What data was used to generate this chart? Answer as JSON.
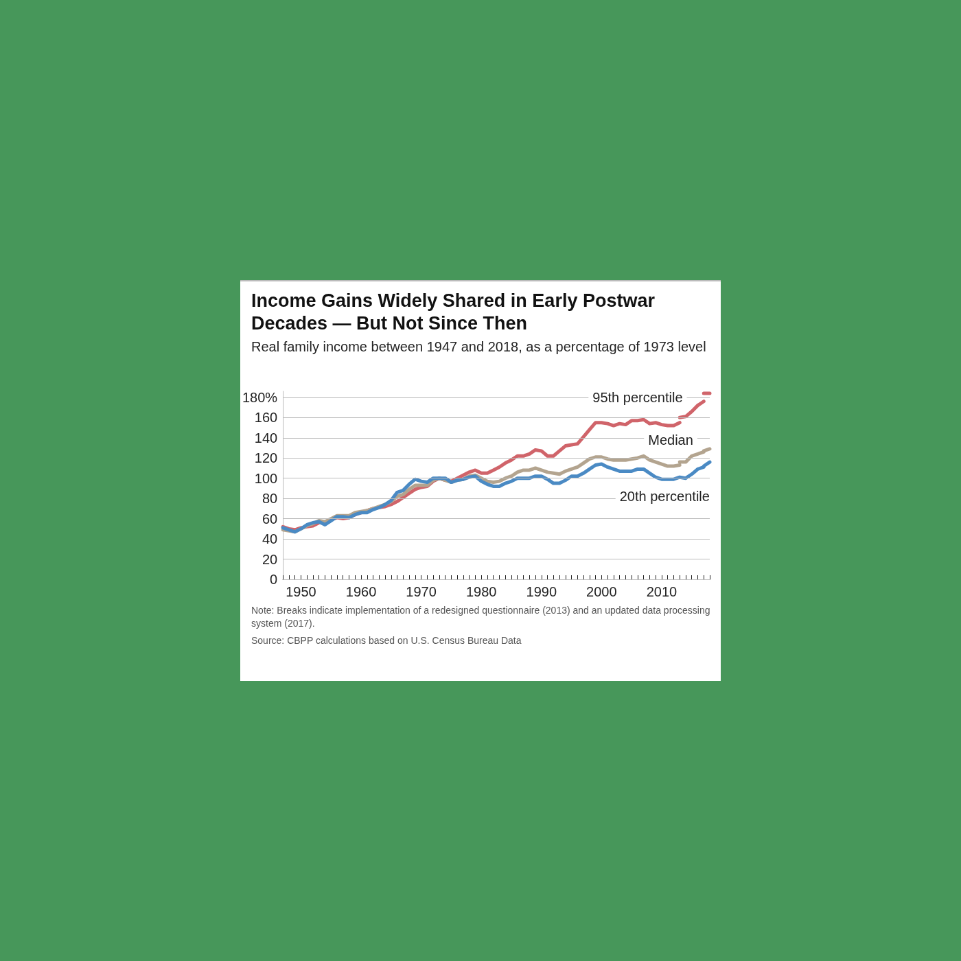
{
  "chart_data": {
    "type": "line",
    "title": "Income Gains Widely Shared in Early Postwar Decades — But Not Since Then",
    "subtitle": "Real family income between 1947 and 2018, as a percentage of 1973 level",
    "annotations": [
      "Note: Breaks indicate implementation of a redesigned questionnaire (2013) and an updated data processing system (2017).",
      "Source: CBPP calculations based on U.S. Census Bureau Data"
    ],
    "x": [
      1947,
      1948,
      1949,
      1950,
      1951,
      1952,
      1953,
      1954,
      1955,
      1956,
      1957,
      1958,
      1959,
      1960,
      1961,
      1962,
      1963,
      1964,
      1965,
      1966,
      1967,
      1968,
      1969,
      1970,
      1971,
      1972,
      1973,
      1974,
      1975,
      1976,
      1977,
      1978,
      1979,
      1980,
      1981,
      1982,
      1983,
      1984,
      1985,
      1986,
      1987,
      1988,
      1989,
      1990,
      1991,
      1992,
      1993,
      1994,
      1995,
      1996,
      1997,
      1998,
      1999,
      2000,
      2001,
      2002,
      2003,
      2004,
      2005,
      2006,
      2007,
      2008,
      2009,
      2010,
      2011,
      2012,
      2013,
      null,
      2013,
      2014,
      2015,
      2016,
      2017,
      null,
      2017,
      2018
    ],
    "series": [
      {
        "name": "95th percentile",
        "color": "#d0646a",
        "values": [
          52,
          50,
          49,
          51,
          52,
          53,
          56,
          56,
          59,
          61,
          60,
          61,
          64,
          66,
          68,
          70,
          71,
          72,
          74,
          77,
          81,
          85,
          89,
          91,
          92,
          97,
          100,
          98,
          97,
          100,
          103,
          106,
          108,
          105,
          105,
          108,
          111,
          115,
          118,
          122,
          122,
          124,
          128,
          127,
          122,
          122,
          127,
          132,
          133,
          134,
          141,
          148,
          155,
          155,
          154,
          152,
          154,
          153,
          157,
          157,
          158,
          154,
          155,
          153,
          152,
          152,
          155,
          null,
          160,
          161,
          166,
          172,
          176,
          null,
          184,
          184
        ]
      },
      {
        "name": "Median",
        "color": "#b3a48f",
        "values": [
          49,
          48,
          47,
          50,
          53,
          55,
          58,
          57,
          60,
          63,
          63,
          63,
          66,
          67,
          68,
          70,
          72,
          74,
          77,
          82,
          84,
          89,
          93,
          93,
          93,
          98,
          100,
          98,
          96,
          98,
          99,
          102,
          103,
          100,
          97,
          96,
          97,
          100,
          102,
          106,
          108,
          108,
          110,
          108,
          106,
          105,
          104,
          107,
          109,
          111,
          115,
          119,
          121,
          121,
          119,
          118,
          118,
          118,
          119,
          120,
          122,
          118,
          116,
          114,
          112,
          112,
          113,
          null,
          116,
          116,
          122,
          124,
          126,
          null,
          127,
          129
        ]
      },
      {
        "name": "20th percentile",
        "color": "#4a8ac4",
        "values": [
          51,
          49,
          47,
          50,
          54,
          56,
          57,
          54,
          58,
          62,
          62,
          61,
          64,
          66,
          66,
          69,
          71,
          74,
          78,
          86,
          88,
          94,
          99,
          97,
          96,
          100,
          100,
          100,
          96,
          98,
          99,
          101,
          102,
          97,
          94,
          92,
          92,
          95,
          97,
          100,
          100,
          100,
          102,
          102,
          99,
          95,
          95,
          98,
          102,
          102,
          105,
          109,
          113,
          114,
          111,
          109,
          107,
          107,
          107,
          109,
          109,
          105,
          101,
          99,
          99,
          99,
          101,
          null,
          101,
          100,
          104,
          109,
          111,
          null,
          112,
          116
        ]
      }
    ],
    "xlim": [
      1947,
      2018
    ],
    "xticks": [
      1950,
      1960,
      1970,
      1980,
      1990,
      2000,
      2010
    ],
    "ylim": [
      0,
      186
    ],
    "yticks": [
      0,
      20,
      40,
      60,
      80,
      100,
      120,
      140,
      160,
      {
        "value": 180,
        "label": "180%"
      }
    ],
    "grid": "y",
    "legend": false,
    "marker": "none",
    "line_style": "solid"
  }
}
